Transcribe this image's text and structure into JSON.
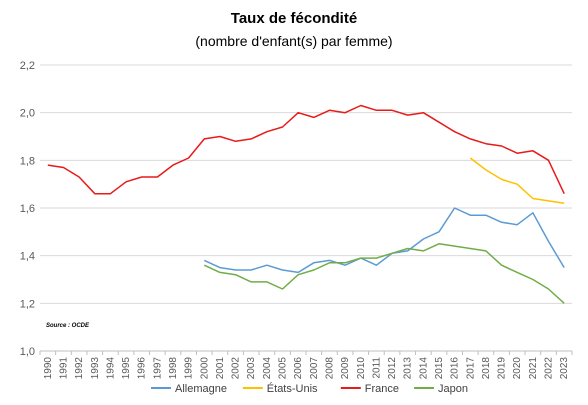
{
  "chart_data": {
    "type": "line",
    "title": "Taux de fécondité",
    "subtitle": "(nombre d'enfant(s) par femme)",
    "source_note": "Source : OCDE",
    "x": [
      "1990",
      "1991",
      "1992",
      "1993",
      "1994",
      "1995",
      "1996",
      "1997",
      "1998",
      "1999",
      "2000",
      "2001",
      "2002",
      "2003",
      "2004",
      "2005",
      "2006",
      "2007",
      "2008",
      "2009",
      "2010",
      "2011",
      "2012",
      "2013",
      "2014",
      "2015",
      "2016",
      "2017",
      "2018",
      "2019",
      "2020",
      "2021",
      "2022",
      "2023"
    ],
    "ylim": [
      1.0,
      2.2
    ],
    "yticks": [
      "1,0",
      "1,2",
      "1,4",
      "1,6",
      "1,8",
      "2,0",
      "2,2"
    ],
    "ytick_values": [
      1.0,
      1.2,
      1.4,
      1.6,
      1.8,
      2.0,
      2.2
    ],
    "grid": "horizontal",
    "legend_position": "bottom",
    "series": [
      {
        "name": "Allemagne",
        "color": "#5b9bd5",
        "values": [
          null,
          null,
          null,
          null,
          null,
          null,
          null,
          null,
          null,
          null,
          1.38,
          1.35,
          1.34,
          1.34,
          1.36,
          1.34,
          1.33,
          1.37,
          1.38,
          1.36,
          1.39,
          1.36,
          1.41,
          1.42,
          1.47,
          1.5,
          1.6,
          1.57,
          1.57,
          1.54,
          1.53,
          1.58,
          1.46,
          1.35
        ]
      },
      {
        "name": "États-Unis",
        "color": "#ffc000",
        "values": [
          null,
          null,
          null,
          null,
          null,
          null,
          null,
          null,
          null,
          null,
          null,
          null,
          null,
          null,
          null,
          null,
          null,
          null,
          null,
          null,
          null,
          null,
          null,
          null,
          null,
          null,
          null,
          1.81,
          1.76,
          1.72,
          1.7,
          1.64,
          1.63,
          1.62
        ]
      },
      {
        "name": "France",
        "color": "#e81a1a",
        "values": [
          1.78,
          1.77,
          1.73,
          1.66,
          1.66,
          1.71,
          1.73,
          1.73,
          1.78,
          1.81,
          1.89,
          1.9,
          1.88,
          1.89,
          1.92,
          1.94,
          2.0,
          1.98,
          2.01,
          2.0,
          2.03,
          2.01,
          2.01,
          1.99,
          2.0,
          1.96,
          1.92,
          1.89,
          1.87,
          1.86,
          1.83,
          1.84,
          1.8,
          1.66
        ]
      },
      {
        "name": "Japon",
        "color": "#70ad47",
        "values": [
          null,
          null,
          null,
          null,
          null,
          null,
          null,
          null,
          null,
          null,
          1.36,
          1.33,
          1.32,
          1.29,
          1.29,
          1.26,
          1.32,
          1.34,
          1.37,
          1.37,
          1.39,
          1.39,
          1.41,
          1.43,
          1.42,
          1.45,
          1.44,
          1.43,
          1.42,
          1.36,
          1.33,
          1.3,
          1.26,
          1.2
        ]
      }
    ]
  }
}
